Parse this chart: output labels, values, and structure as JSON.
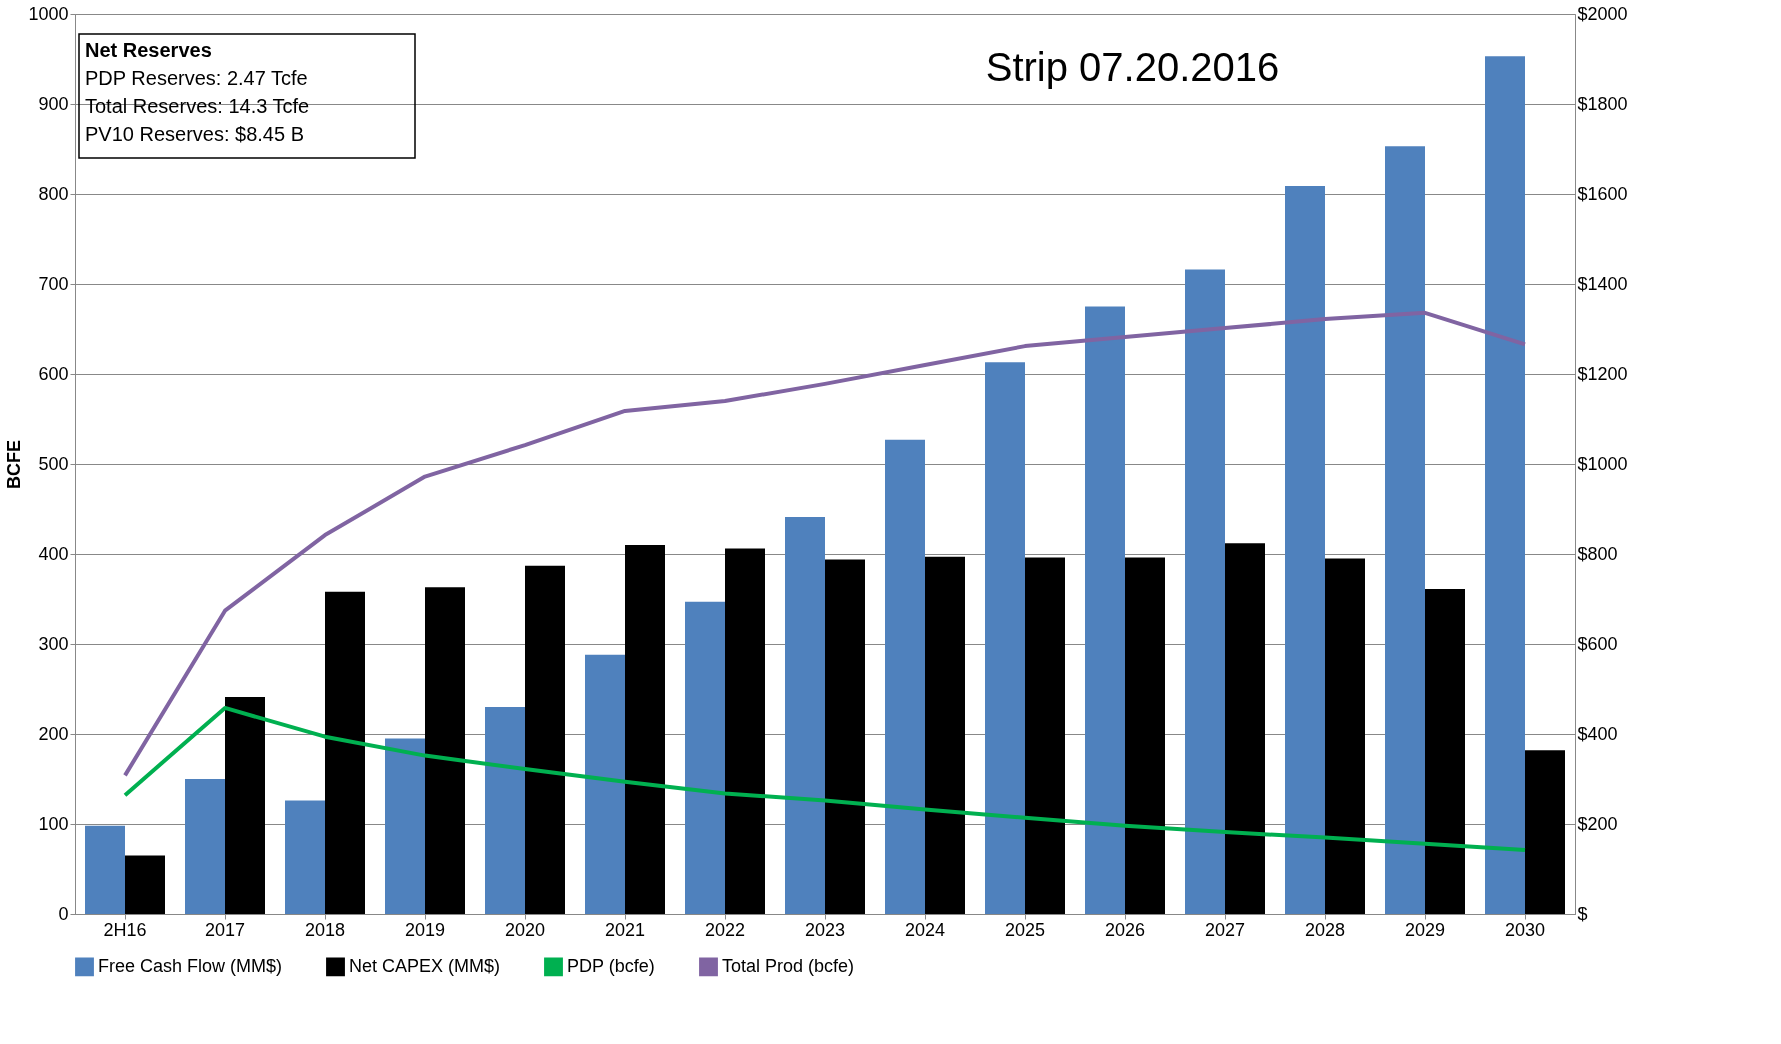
{
  "chart_data": {
    "type": "bar",
    "ylabel": "BCFE",
    "categories": [
      "2H16",
      "2017",
      "2018",
      "2019",
      "2020",
      "2021",
      "2022",
      "2023",
      "2024",
      "2025",
      "2026",
      "2027",
      "2028",
      "2029",
      "2030"
    ],
    "series": [
      {
        "name": "Free Cash Flow (MM$)",
        "color": "#4f81bd",
        "axis": "y2",
        "values": [
          196,
          300,
          252,
          390,
          460,
          576,
          694,
          882,
          1054,
          1226,
          1350,
          1432,
          1618,
          1706,
          1906
        ]
      },
      {
        "name": "Net CAPEX (MM$)",
        "color": "#000000",
        "axis": "y2",
        "values": [
          130,
          482,
          716,
          726,
          774,
          820,
          812,
          788,
          794,
          792,
          792,
          824,
          790,
          722,
          364
        ]
      },
      {
        "name": "PDP (bcfe)",
        "color": "#00b050",
        "type": "line",
        "values": [
          132,
          229,
          197,
          176,
          161,
          147,
          134,
          126,
          116,
          107,
          98,
          91,
          85,
          78,
          71
        ]
      },
      {
        "name": "Total Prod (bcfe)",
        "color": "#8064a2",
        "type": "line",
        "values": [
          154,
          337,
          421,
          486,
          521,
          559,
          570,
          589,
          610,
          631,
          641,
          651,
          661,
          668,
          633
        ]
      }
    ],
    "ylim": [
      0,
      1000
    ],
    "yticks": [
      0,
      100,
      200,
      300,
      400,
      500,
      600,
      700,
      800,
      900,
      1000
    ],
    "y2lim": [
      0,
      2000
    ],
    "y2ticks": [
      {
        "value": 0,
        "label": "$"
      },
      {
        "value": 200,
        "label": "$200"
      },
      {
        "value": 400,
        "label": "$400"
      },
      {
        "value": 600,
        "label": "$600"
      },
      {
        "value": 800,
        "label": "$800"
      },
      {
        "value": 1000,
        "label": "$1000"
      },
      {
        "value": 1200,
        "label": "$1200"
      },
      {
        "value": 1400,
        "label": "$1400"
      },
      {
        "value": 1600,
        "label": "$1600"
      },
      {
        "value": 1800,
        "label": "$1800"
      },
      {
        "value": 2000,
        "label": "$2000"
      }
    ],
    "grid": "y",
    "legend": "bottom",
    "marker": "none",
    "line_style": "solid",
    "annotations": [
      "Net Reserves",
      "PDP Reserves: 2.47 Tcfe",
      "Total Reserves: 14.3 Tcfe",
      "PV10 Reserves: $8.45 B",
      "Strip 07.20.2016"
    ]
  }
}
